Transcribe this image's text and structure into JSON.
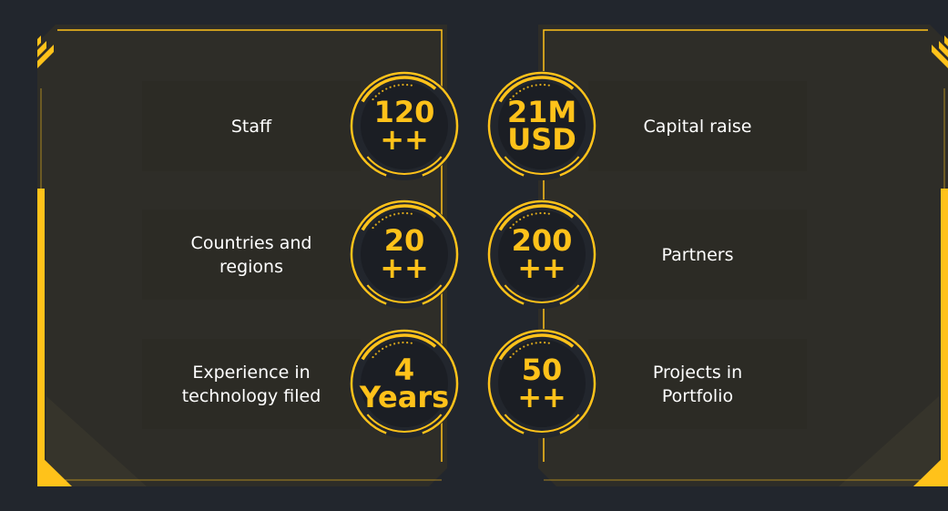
{
  "colors": {
    "accent": "#ffc21a",
    "background": "#22262d",
    "panel": "#2e2d28",
    "bar": "#2c2b25"
  },
  "stats": {
    "staff": {
      "label": "Staff",
      "value_line1": "120",
      "value_line2": "++"
    },
    "capital": {
      "label": "Capital raise",
      "value_line1": "21M",
      "value_line2": "USD"
    },
    "countries": {
      "label_line1": "Countries and",
      "label_line2": "regions",
      "value_line1": "20",
      "value_line2": "++"
    },
    "partners": {
      "label": "Partners",
      "value_line1": "200",
      "value_line2": "++"
    },
    "experience": {
      "label_line1": "Experience in",
      "label_line2": "technology filed",
      "value_line1": "4",
      "value_line2": "Years"
    },
    "projects": {
      "label_line1": "Projects in",
      "label_line2": "Portfolio",
      "value_line1": "50",
      "value_line2": "++"
    }
  }
}
